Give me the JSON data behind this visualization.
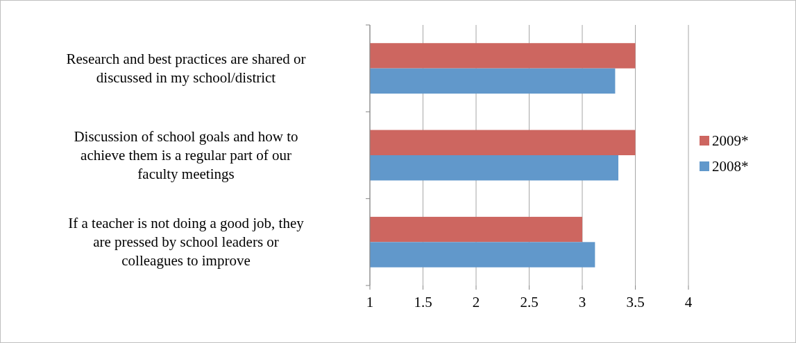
{
  "chart_data": {
    "type": "bar",
    "orientation": "horizontal",
    "categories": [
      "Research and best practices are shared or discussed in my school/district",
      "Discussion of school goals and how to achieve them is a regular part of our faculty meetings",
      "If a teacher is not doing a good job, they are pressed by school leaders or colleagues to improve"
    ],
    "series": [
      {
        "name": "2009*",
        "color": "#cd6660",
        "values": [
          3.5,
          3.5,
          3.0
        ]
      },
      {
        "name": "2008*",
        "color": "#6198cb",
        "values": [
          3.31,
          3.34,
          3.12
        ]
      }
    ],
    "xlim": [
      1,
      4
    ],
    "xticks": [
      1,
      1.5,
      2,
      2.5,
      3,
      3.5,
      4
    ],
    "grid": "x",
    "legend": "right"
  }
}
